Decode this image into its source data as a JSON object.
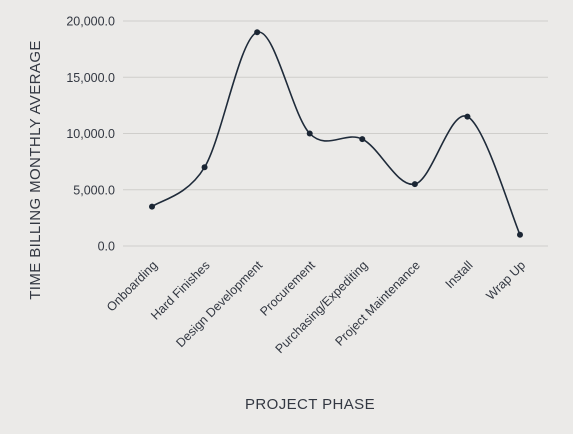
{
  "chart_data": {
    "type": "line",
    "title": "",
    "xlabel": "PROJECT PHASE",
    "ylabel": "TIME BILLING MONTHLY AVERAGE",
    "categories": [
      "Onboarding",
      "Hard Finishes",
      "Design Development",
      "Procurement",
      "Purchasing/Expediting",
      "Project Maintenance",
      "Install",
      "Wrap Up"
    ],
    "series": [
      {
        "values": [
          3500,
          7000,
          19000,
          10000,
          9500,
          5500,
          11500,
          1000
        ]
      }
    ],
    "y_ticks": [
      "0.0",
      "5,000.0",
      "10,000.0",
      "15,000.0",
      "20,000.0"
    ],
    "ylim": [
      0,
      20000
    ],
    "grid": true,
    "smooth": true,
    "legend": "none",
    "colors": {
      "line": "#1f2b3a",
      "point": "#1b2634",
      "grid": "#cfcecb",
      "background": "#ebeae8"
    }
  }
}
